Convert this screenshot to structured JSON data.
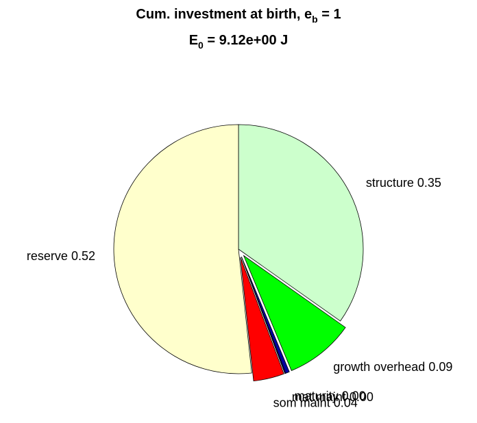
{
  "chart_data": {
    "type": "pie",
    "title": [
      "Cum. investment at birth, e",
      "b",
      " = 1"
    ],
    "subtitle": [
      "E",
      "0",
      " = 9.12e+00 J"
    ],
    "categories": [
      "structure",
      "growth overhead",
      "maturity",
      "mat maint",
      "som maint",
      "reserve"
    ],
    "values": [
      0.35,
      0.09,
      0.005,
      0.001,
      0.04,
      0.52
    ],
    "value_labels": [
      "0.35",
      "0.09",
      "0.00",
      "0.00",
      "0.04",
      "0.52"
    ],
    "colors": [
      "#ccffcc",
      "#00ff00",
      "#0000a0",
      "#0000ff",
      "#ff0000",
      "#ffffcc"
    ],
    "explode": [
      false,
      true,
      true,
      true,
      true,
      false
    ]
  }
}
